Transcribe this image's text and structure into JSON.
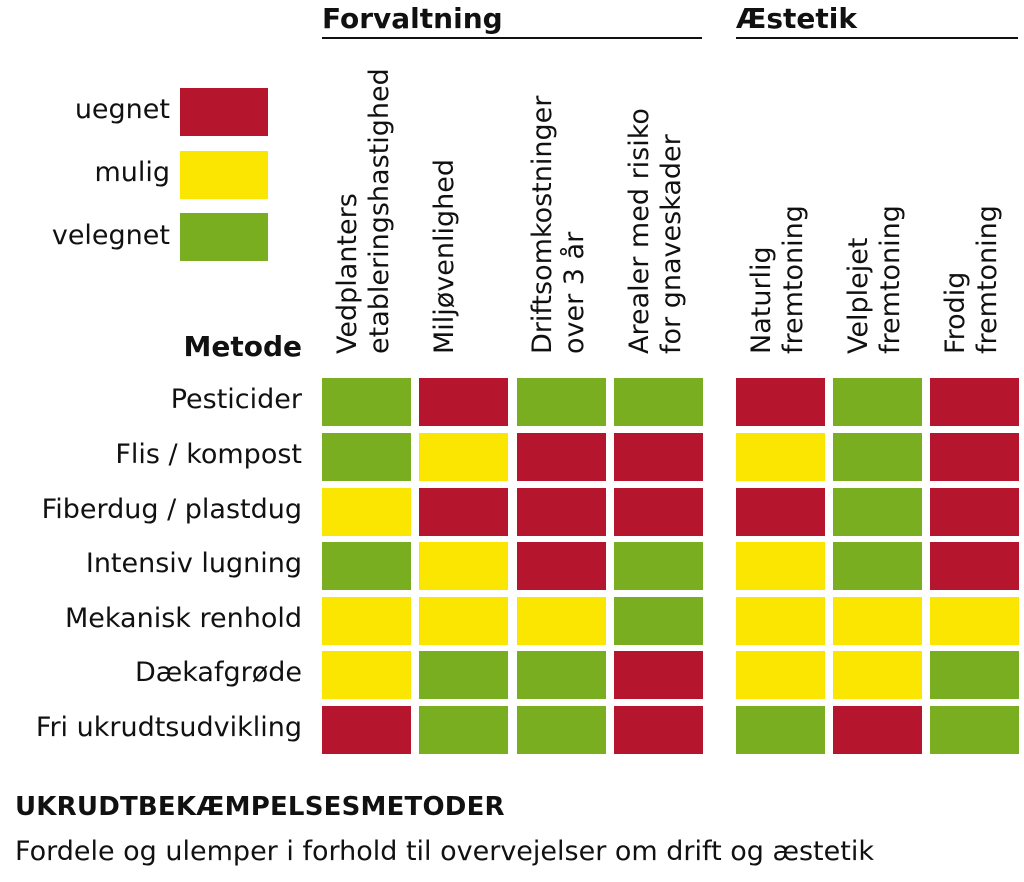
{
  "colors": {
    "uegnet": "#b5162e",
    "mulig": "#fae600",
    "velegnet": "#78ae1f"
  },
  "groups": [
    {
      "title": "Forvaltning"
    },
    {
      "title": "Æstetik"
    }
  ],
  "legend": [
    {
      "key": "uegnet",
      "label": "uegnet"
    },
    {
      "key": "mulig",
      "label": "mulig"
    },
    {
      "key": "velegnet",
      "label": "velegnet"
    }
  ],
  "metode_label": "Metode",
  "footer": {
    "title": "UKRUDTBEKÆMPELSESMETODER",
    "subtitle": "Fordele og ulemper i forhold til overvejelser om drift og æstetik"
  },
  "chart_data": {
    "type": "heatmap",
    "columns": [
      "Vedplanters\netableringshastighed",
      "Miljøvenlighed",
      "Driftsomkostninger\nover 3 år",
      "Arealer med risiko\nfor gnaveskader",
      "Naturlig\nfremtoning",
      "Velplejet\nfremtoning",
      "Frodig\nfremtoning"
    ],
    "rows": [
      "Pesticider",
      "Flis / kompost",
      "Fiberdug / plastdug",
      "Intensiv lugning",
      "Mekanisk renhold",
      "Dækafgrøde",
      "Fri ukrudtsudvikling"
    ],
    "values": [
      [
        "velegnet",
        "uegnet",
        "velegnet",
        "velegnet",
        "uegnet",
        "velegnet",
        "uegnet"
      ],
      [
        "velegnet",
        "mulig",
        "uegnet",
        "uegnet",
        "mulig",
        "velegnet",
        "uegnet"
      ],
      [
        "mulig",
        "uegnet",
        "uegnet",
        "uegnet",
        "uegnet",
        "velegnet",
        "uegnet"
      ],
      [
        "velegnet",
        "mulig",
        "uegnet",
        "velegnet",
        "mulig",
        "velegnet",
        "uegnet"
      ],
      [
        "mulig",
        "mulig",
        "mulig",
        "velegnet",
        "mulig",
        "mulig",
        "mulig"
      ],
      [
        "mulig",
        "velegnet",
        "velegnet",
        "uegnet",
        "mulig",
        "mulig",
        "velegnet"
      ],
      [
        "uegnet",
        "velegnet",
        "velegnet",
        "uegnet",
        "velegnet",
        "uegnet",
        "velegnet"
      ]
    ]
  }
}
